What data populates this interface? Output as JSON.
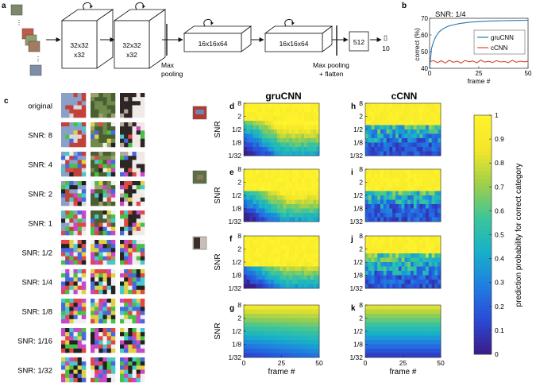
{
  "panel_letters": {
    "a": "a",
    "b": "b",
    "c": "c",
    "d": "d",
    "e": "e",
    "f": "f",
    "g": "g",
    "h": "h",
    "i": "i",
    "j": "j",
    "k": "k"
  },
  "colors": {
    "gruCNN": "#1f77b4",
    "cCNN": "#d9482b",
    "colormap": [
      "#3a1f8c",
      "#2b4bd8",
      "#1f7fe0",
      "#18b1c8",
      "#3cc59a",
      "#9fcf4a",
      "#f2e62a",
      "#fff32c"
    ]
  },
  "architecture": {
    "blocks": [
      {
        "line1": "32x32",
        "line2": "x32"
      },
      {
        "line1": "32x32",
        "line2": "x32"
      },
      {
        "line1": "16x16x64",
        "line2": ""
      },
      {
        "line1": "16x16x64",
        "line2": ""
      }
    ],
    "maxpool_label_1": "Max",
    "maxpool_label_2": "pooling",
    "flatten_label_1": "Max pooling",
    "flatten_label_2": "+ flatten",
    "dense_label": "512",
    "output_label": "10"
  },
  "noise_examples": {
    "rows": [
      "original",
      "SNR: 8",
      "SNR: 4",
      "SNR: 2",
      "SNR: 1",
      "SNR: 1/2",
      "SNR: 1/4",
      "SNR: 1/8",
      "SNR: 1/16",
      "SNR: 1/32"
    ]
  },
  "heatmaps": {
    "col_titles": {
      "left": "gruCNN",
      "right": "cCNN"
    },
    "y_axis_label": "SNR",
    "y_ticks": [
      "8",
      "2",
      "1/2",
      "1/8",
      "1/32"
    ],
    "x_ticks": [
      "0",
      "25",
      "50"
    ],
    "x_label": "frame #",
    "colorbar_label": "prediction probability for correct category",
    "colorbar_ticks": [
      "0",
      "0.1",
      "0.2",
      "0.3",
      "0.4",
      "0.5",
      "0.6",
      "0.7",
      "0.8",
      "0.9",
      "1"
    ]
  },
  "chart_data": {
    "type": "line",
    "title": "SNR: 1/4",
    "xlabel": "frame #",
    "ylabel": "correct (%)",
    "xlim": [
      0,
      50
    ],
    "ylim": [
      40,
      70
    ],
    "x_ticks": [
      "0",
      "25",
      "50"
    ],
    "y_ticks": [
      "40",
      "50",
      "60",
      "70"
    ],
    "legend_position": "right",
    "series": [
      {
        "name": "gruCNN",
        "x": [
          0,
          1,
          2,
          3,
          4,
          5,
          6,
          8,
          10,
          12,
          15,
          18,
          20,
          25,
          30,
          35,
          40,
          45,
          50
        ],
        "values": [
          40,
          52,
          56,
          58.5,
          60.5,
          62,
          63,
          64.5,
          65.5,
          66,
          66.8,
          67.3,
          67.6,
          68,
          68.3,
          68.5,
          68.6,
          68.7,
          68.8
        ]
      },
      {
        "name": "cCNN",
        "x": [
          0,
          2,
          4,
          6,
          8,
          10,
          12,
          14,
          16,
          18,
          20,
          22,
          24,
          26,
          28,
          30,
          32,
          34,
          36,
          38,
          40,
          42,
          44,
          46,
          48,
          50
        ],
        "values": [
          44,
          44.6,
          43.4,
          44.5,
          43.2,
          44.8,
          43.6,
          44.3,
          43.1,
          44.7,
          43.9,
          44.4,
          43.3,
          44.9,
          43.7,
          44.2,
          43.5,
          44.6,
          43.8,
          44.1,
          43.4,
          44.8,
          43.6,
          44.3,
          43.9,
          44.2
        ]
      }
    ]
  }
}
